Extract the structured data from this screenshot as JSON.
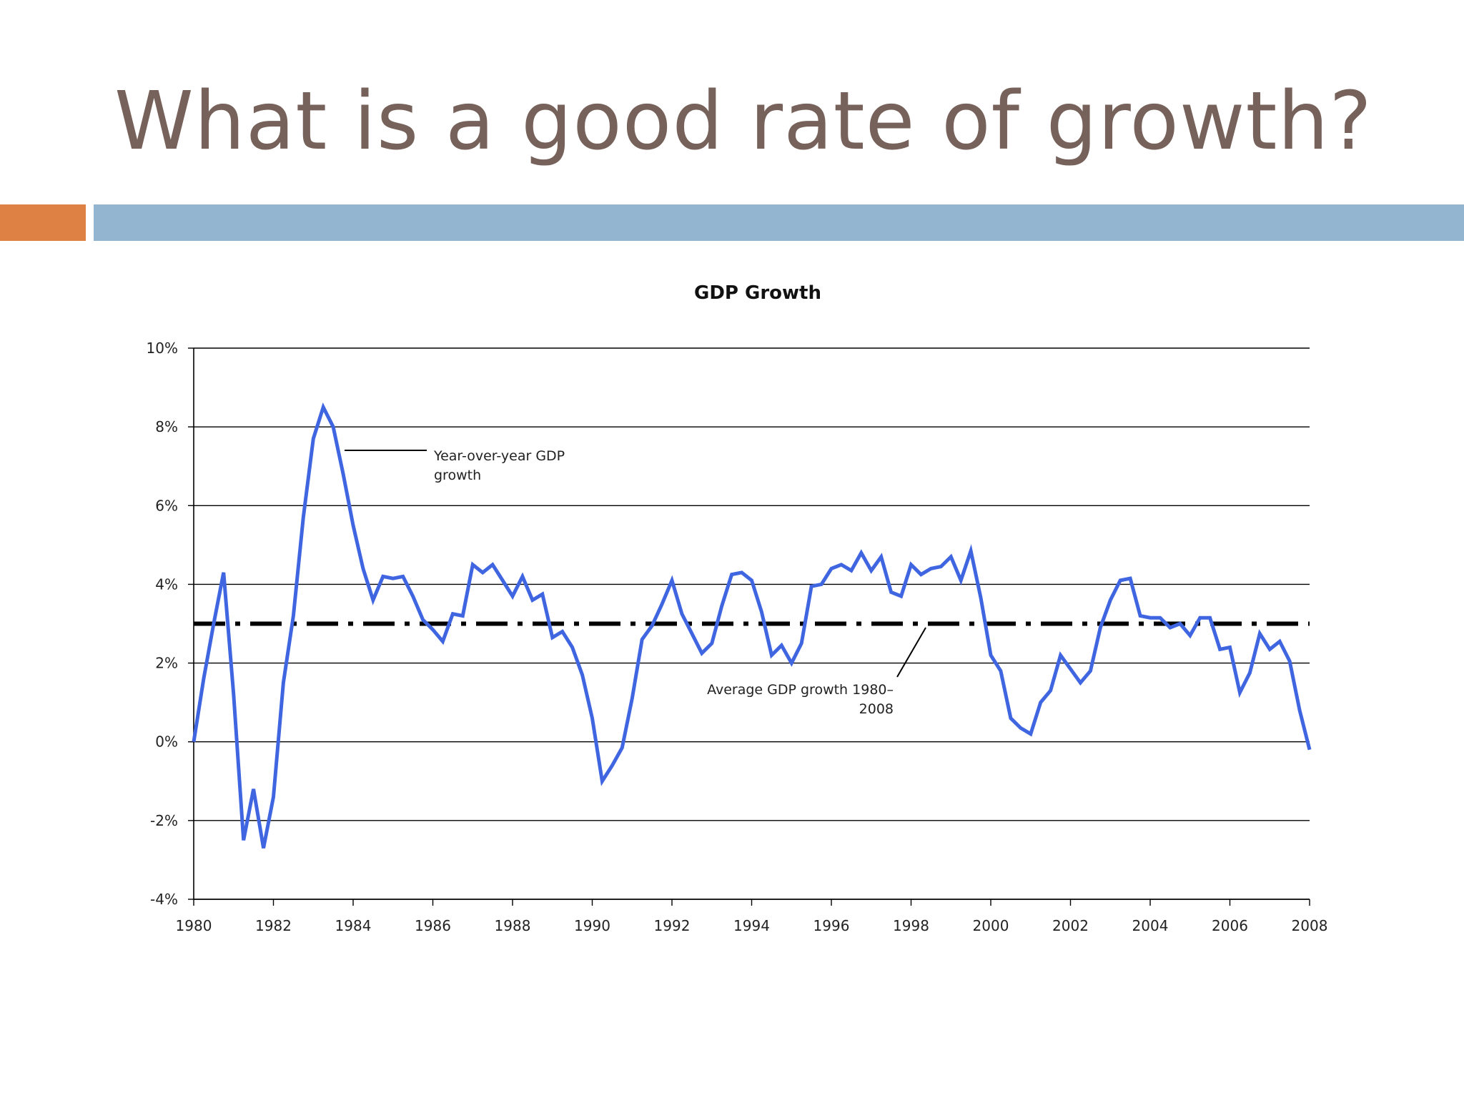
{
  "slide": {
    "title": "What is a good rate of growth?",
    "accent_colors": {
      "orange": "#dd8145",
      "blue": "#93b5d0",
      "title": "#76625a"
    }
  },
  "chart_data": {
    "type": "line",
    "title": "GDP Growth",
    "xlim": [
      1980,
      2008
    ],
    "ylim": [
      -4,
      10
    ],
    "x_ticks": [
      1980,
      1982,
      1984,
      1986,
      1988,
      1990,
      1992,
      1994,
      1996,
      1998,
      2000,
      2002,
      2004,
      2006,
      2008
    ],
    "x_tick_labels": [
      "1980",
      "1982",
      "1984",
      "1986",
      "1988",
      "1990",
      "1992",
      "1994",
      "1996",
      "1998",
      "2000",
      "2002",
      "2004",
      "2006",
      "2008"
    ],
    "y_ticks": [
      -4,
      -2,
      0,
      2,
      4,
      6,
      8,
      10
    ],
    "y_tick_labels": [
      "-4%",
      "-2%",
      "0%",
      "2%",
      "4%",
      "6%",
      "8%",
      "10%"
    ],
    "grid": "horizontal",
    "series": [
      {
        "name": "Year-over-year GDP growth",
        "color": "#3f66e0",
        "x": [
          1980.0,
          1980.25,
          1980.5,
          1980.75,
          1981.0,
          1981.25,
          1981.5,
          1981.75,
          1982.0,
          1982.25,
          1982.5,
          1982.75,
          1983.0,
          1983.25,
          1983.5,
          1983.75,
          1984.0,
          1984.25,
          1984.5,
          1984.75,
          1985.0,
          1985.25,
          1985.5,
          1985.75,
          1986.0,
          1986.25,
          1986.5,
          1986.75,
          1987.0,
          1987.25,
          1987.5,
          1987.75,
          1988.0,
          1988.25,
          1988.5,
          1988.75,
          1989.0,
          1989.25,
          1989.5,
          1989.75,
          1990.0,
          1990.25,
          1990.5,
          1990.75,
          1991.0,
          1991.25,
          1991.5,
          1991.75,
          1992.0,
          1992.25,
          1992.5,
          1992.75,
          1993.0,
          1993.25,
          1993.5,
          1993.75,
          1994.0,
          1994.25,
          1994.5,
          1994.75,
          1995.0,
          1995.25,
          1995.5,
          1995.75,
          1996.0,
          1996.25,
          1996.5,
          1996.75,
          1997.0,
          1997.25,
          1997.5,
          1997.75,
          1998.0,
          1998.25,
          1998.5,
          1998.75,
          1999.0,
          1999.25,
          1999.5,
          1999.75,
          2000.0,
          2000.25,
          2000.5,
          2000.75,
          2001.0,
          2001.25,
          2001.5,
          2001.75,
          2002.0,
          2002.25,
          2002.5,
          2002.75,
          2003.0,
          2003.25,
          2003.5,
          2003.75,
          2004.0,
          2004.25,
          2004.5,
          2004.75,
          2005.0,
          2005.25,
          2005.5,
          2005.75,
          2006.0,
          2006.25,
          2006.5,
          2006.75,
          2007.0,
          2007.25,
          2007.5,
          2007.75,
          2008.0
        ],
        "values": [
          0.0,
          1.6,
          3.0,
          4.3,
          1.2,
          -2.5,
          -1.2,
          -2.7,
          -1.4,
          1.5,
          3.2,
          5.7,
          7.7,
          8.5,
          8.0,
          6.8,
          5.5,
          4.4,
          3.6,
          4.2,
          4.15,
          4.2,
          3.7,
          3.1,
          2.85,
          2.55,
          3.25,
          3.2,
          4.5,
          4.3,
          4.5,
          4.1,
          3.7,
          4.2,
          3.6,
          3.75,
          2.65,
          2.8,
          2.4,
          1.7,
          0.6,
          -1.0,
          -0.6,
          -0.15,
          1.1,
          2.6,
          2.95,
          3.5,
          4.1,
          3.25,
          2.75,
          2.25,
          2.5,
          3.45,
          4.25,
          4.3,
          4.1,
          3.3,
          2.2,
          2.45,
          2.0,
          2.5,
          3.95,
          4.0,
          4.4,
          4.5,
          4.35,
          4.8,
          4.35,
          4.7,
          3.8,
          3.7,
          4.5,
          4.25,
          4.4,
          4.45,
          4.7,
          4.1,
          4.85,
          3.65,
          2.2,
          1.8,
          0.6,
          0.35,
          0.2,
          1.0,
          1.3,
          2.2,
          1.85,
          1.5,
          1.8,
          2.9,
          3.6,
          4.1,
          4.15,
          3.2,
          3.15,
          3.15,
          2.9,
          3.0,
          2.7,
          3.15,
          3.15,
          2.35,
          2.4,
          1.25,
          1.75,
          2.75,
          2.35,
          2.55,
          2.05,
          0.8,
          -0.2
        ]
      }
    ],
    "reference_lines": [
      {
        "name": "Average GDP growth 1980–2008",
        "y": 3.0,
        "style": "dash-dot",
        "color": "#000000"
      }
    ],
    "annotations": [
      {
        "target": "Year-over-year GDP growth",
        "lines": [
          "Year-over-year GDP",
          "growth"
        ]
      },
      {
        "target": "Average GDP growth 1980–2008",
        "lines": [
          "Average GDP growth 1980–",
          "2008"
        ]
      }
    ]
  }
}
